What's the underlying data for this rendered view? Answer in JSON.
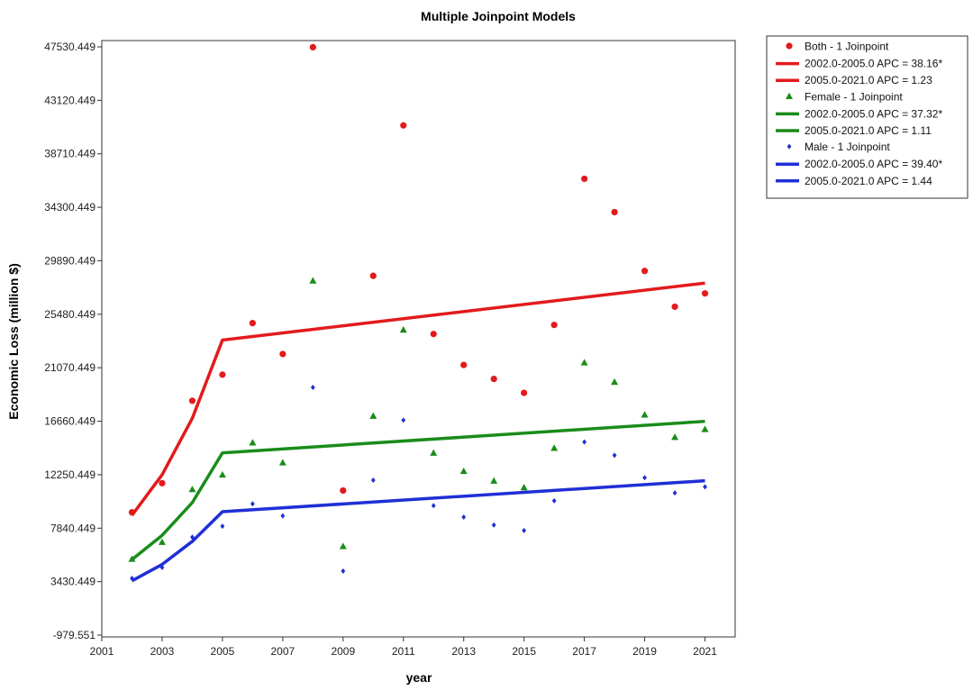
{
  "chart_data": {
    "type": "scatter",
    "title": "Multiple Joinpoint Models",
    "xlabel": "year",
    "ylabel": "Economic Loss (million $)",
    "xlim": [
      2001,
      2022
    ],
    "ylim": [
      -979.551,
      47530.449
    ],
    "xticks": [
      2001,
      2003,
      2005,
      2007,
      2009,
      2011,
      2013,
      2015,
      2017,
      2019,
      2021
    ],
    "yticks": [
      -979.551,
      3430.449,
      7840.449,
      12250.449,
      16660.449,
      21070.449,
      25480.449,
      29890.449,
      34300.449,
      38710.449,
      43120.449,
      47530.449
    ],
    "ytick_labels": [
      "-979.551",
      "3430.449",
      "7840.449",
      "12250.449",
      "16660.449",
      "21070.449",
      "25480.449",
      "29890.449",
      "34300.449",
      "38710.449",
      "43120.449",
      "47530.449"
    ],
    "legend_position": "top-right, outside plot",
    "x": [
      2002,
      2003,
      2004,
      2005,
      2006,
      2007,
      2008,
      2009,
      2010,
      2011,
      2012,
      2013,
      2014,
      2015,
      2016,
      2017,
      2018,
      2019,
      2020,
      2021
    ],
    "series": [
      {
        "name": "Both - 1 Joinpoint",
        "color": "#e31a1c",
        "marker": "circle",
        "values": [
          9150,
          11550,
          18350,
          20500,
          24750,
          22200,
          47500,
          10950,
          28650,
          41050,
          23850,
          21300,
          20150,
          19000,
          24600,
          36650,
          33900,
          29050,
          26100,
          27200
        ],
        "fit": {
          "x": [
            2002,
            2003,
            2004,
            2005,
            2021
          ],
          "y": [
            8900,
            12250,
            16900,
            23350,
            28050
          ],
          "segments": [
            "2002.0-2005.0 APC  = 38.16*",
            "2005.0-2021.0 APC  =  1.23"
          ]
        }
      },
      {
        "name": "Female - 1 Joinpoint",
        "color": "#1a8c1a",
        "marker": "triangle",
        "values": [
          5300,
          6700,
          11050,
          12250,
          14900,
          13250,
          28250,
          6350,
          17100,
          24200,
          14050,
          12550,
          11750,
          11200,
          14450,
          21500,
          19900,
          17200,
          15350,
          16000
        ],
        "fit": {
          "x": [
            2002,
            2003,
            2004,
            2005,
            2021
          ],
          "y": [
            5250,
            7250,
            9950,
            14050,
            16650
          ],
          "segments": [
            "2002.0-2005.0 APC  = 37.32*",
            "2005.0-2021.0 APC  =  1.11"
          ]
        }
      },
      {
        "name": "Male - 1 Joinpoint",
        "color": "#1f2fd6",
        "marker": "diamond",
        "values": [
          3700,
          4600,
          7100,
          8000,
          9850,
          8850,
          19450,
          4300,
          11800,
          16750,
          9700,
          8750,
          8100,
          7650,
          10100,
          14950,
          13850,
          12000,
          10750,
          11250
        ],
        "fit": {
          "x": [
            2002,
            2003,
            2004,
            2005,
            2021
          ],
          "y": [
            3500,
            4850,
            6750,
            9200,
            11750
          ],
          "segments": [
            "2002.0-2005.0 APC  = 39.40*",
            "2005.0-2021.0 APC  =  1.44"
          ]
        }
      }
    ]
  }
}
